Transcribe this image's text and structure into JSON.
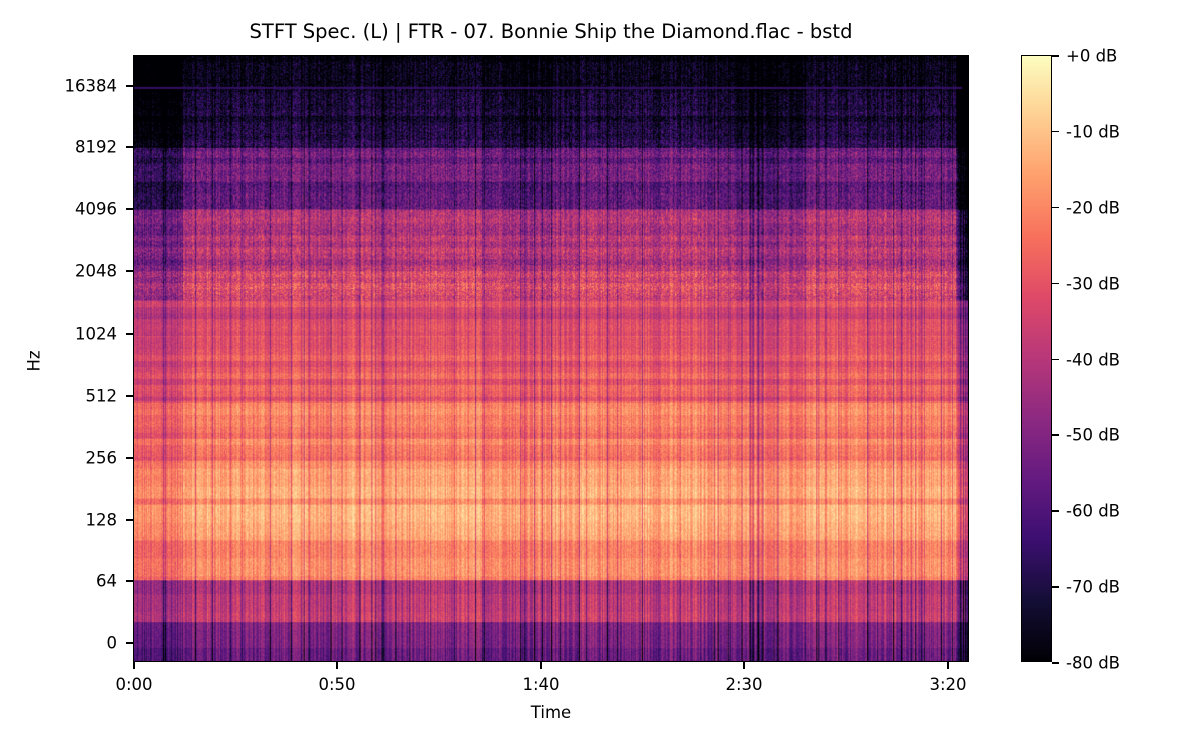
{
  "chart_data": {
    "type": "heatmap",
    "title": "STFT Spec. (L) | FTR - 07. Bonnie Ship the Diamond.flac - bstd",
    "xlabel": "Time",
    "ylabel": "Hz",
    "x_ticks": [
      {
        "label": "0:00",
        "seconds": 0
      },
      {
        "label": "0:50",
        "seconds": 50
      },
      {
        "label": "1:40",
        "seconds": 100
      },
      {
        "label": "2:30",
        "seconds": 150
      },
      {
        "label": "3:20",
        "seconds": 200
      }
    ],
    "xlim_seconds": [
      0,
      206
    ],
    "y_scale": "log2 (with 0 at bottom)",
    "y_ticks": [
      "0",
      "64",
      "128",
      "256",
      "512",
      "1024",
      "2048",
      "4096",
      "8192",
      "16384"
    ],
    "ylim_hz": [
      0,
      22050
    ],
    "colorbar": {
      "cmap": "magma",
      "range_db": [
        -80,
        0
      ],
      "ticks": [
        "+0 dB",
        "-10 dB",
        "-20 dB",
        "-30 dB",
        "-40 dB",
        "-50 dB",
        "-60 dB",
        "-70 dB",
        "-80 dB"
      ]
    },
    "grid": false,
    "legend": "none",
    "intensity_profile": [
      {
        "band_hz": "0-32",
        "approx_db": -55
      },
      {
        "band_hz": "32-64",
        "approx_db": -40
      },
      {
        "band_hz": "64-256",
        "approx_db": -18
      },
      {
        "band_hz": "256-512",
        "approx_db": -25
      },
      {
        "band_hz": "512-1024",
        "approx_db": -30
      },
      {
        "band_hz": "1024-2048",
        "approx_db": -35
      },
      {
        "band_hz": "2048-4096",
        "approx_db": -45
      },
      {
        "band_hz": "4096-8192",
        "approx_db": -60
      },
      {
        "band_hz": "8192-22050",
        "approx_db": -75
      }
    ],
    "annotations": [
      "faint horizontal line near 16 kHz",
      "song fades out at ~3:24"
    ]
  },
  "ui": {
    "title": "STFT Spec. (L) | FTR - 07. Bonnie Ship the Diamond.flac - bstd",
    "xlabel": "Time",
    "ylabel": "Hz"
  }
}
